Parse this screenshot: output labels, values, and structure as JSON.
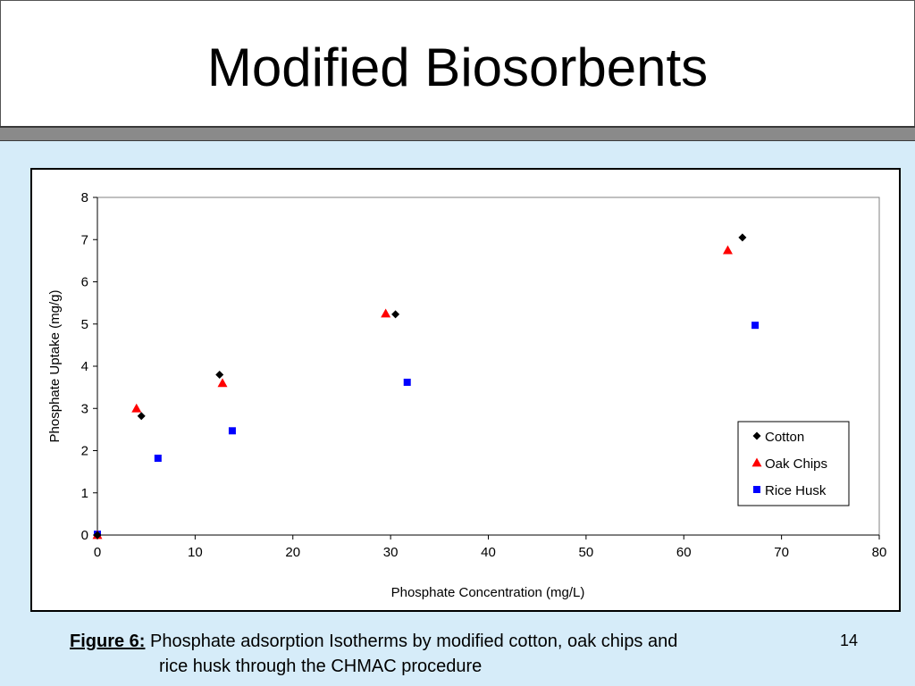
{
  "slide": {
    "title": "Modified Biosorbents",
    "number": "14",
    "background_color": "#d6ecf9",
    "bar_color": "#8a8a8a"
  },
  "caption": {
    "label": "Figure 6:",
    "line1": " Phosphate adsorption Isotherms by modified cotton, oak chips and",
    "line2": "rice husk through the CHMAC procedure"
  },
  "chart_data": {
    "type": "scatter",
    "title": "",
    "xlabel": "Phosphate Concentration (mg/L)",
    "ylabel": "Phosphate Uptake (mg/g)",
    "xlim": [
      0,
      80
    ],
    "ylim": [
      0,
      8
    ],
    "x_ticks": [
      0,
      10,
      20,
      30,
      40,
      50,
      60,
      70,
      80
    ],
    "y_ticks": [
      0,
      1,
      2,
      3,
      4,
      5,
      6,
      7,
      8
    ],
    "grid": false,
    "legend_position": "bottom-right",
    "series": [
      {
        "name": "Cotton",
        "marker": "diamond",
        "color": "#000000",
        "points": [
          [
            0,
            0
          ],
          [
            4.5,
            2.82
          ],
          [
            12.5,
            3.8
          ],
          [
            30.5,
            5.23
          ],
          [
            66,
            7.05
          ]
        ]
      },
      {
        "name": "Oak Chips",
        "marker": "triangle",
        "color": "#ff0000",
        "points": [
          [
            0,
            0
          ],
          [
            4,
            3.0
          ],
          [
            12.8,
            3.6
          ],
          [
            29.5,
            5.25
          ],
          [
            64.5,
            6.75
          ]
        ]
      },
      {
        "name": "Rice Husk",
        "marker": "square",
        "color": "#0000ff",
        "points": [
          [
            0,
            0.02
          ],
          [
            6.2,
            1.82
          ],
          [
            13.8,
            2.47
          ],
          [
            31.7,
            3.62
          ],
          [
            67.3,
            4.97
          ]
        ]
      }
    ]
  }
}
